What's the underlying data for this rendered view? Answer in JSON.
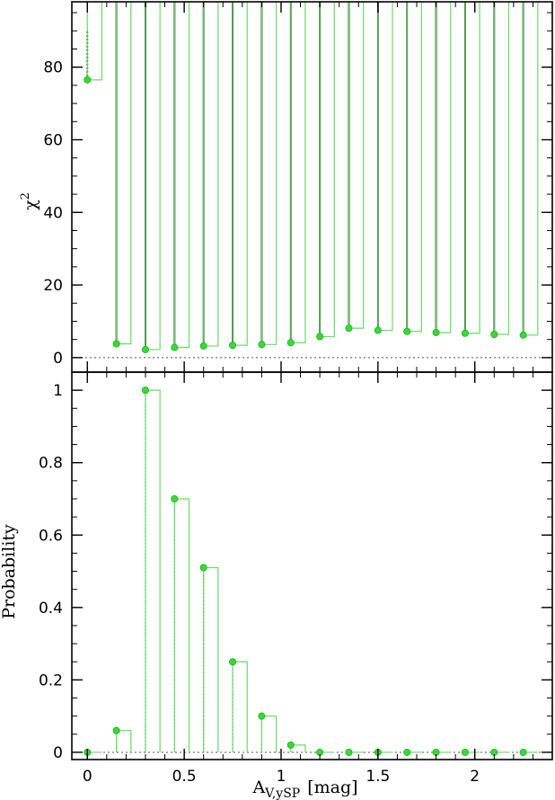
{
  "chart_data": [
    {
      "panel": "top",
      "type": "scatter",
      "ylabel": "χ",
      "ylabel_sup": "2",
      "xlim": [
        -0.08,
        2.4
      ],
      "ylim": [
        -4,
        98
      ],
      "yticks": [
        0,
        20,
        40,
        60,
        80
      ],
      "ytick_labels": [
        "0",
        "20",
        "40",
        "60",
        "80"
      ],
      "reference_line_y": 0,
      "colors": {
        "points": "#33dd33",
        "step": "#66dd66",
        "vlines": "#000000",
        "reference": "#555555"
      },
      "x": [
        0.0,
        0.15,
        0.3,
        0.45,
        0.6,
        0.75,
        0.9,
        1.05,
        1.2,
        1.35,
        1.5,
        1.65,
        1.8,
        1.95,
        2.1,
        2.25
      ],
      "values": [
        76.5,
        3.8,
        2.2,
        2.8,
        3.2,
        3.4,
        3.6,
        4.1,
        5.8,
        8.1,
        7.5,
        7.2,
        6.9,
        6.7,
        6.4,
        6.2
      ]
    },
    {
      "panel": "bottom",
      "type": "scatter",
      "ylabel": "Probability",
      "xlabel_main": "A",
      "xlabel_sub": "V,ySP",
      "xlabel_unit": "[mag]",
      "xlim": [
        -0.08,
        2.4
      ],
      "ylim": [
        -0.02,
        1.05
      ],
      "xticks": [
        0,
        0.5,
        1,
        1.5,
        2
      ],
      "xtick_labels": [
        "0",
        "0.5",
        "1",
        "1.5",
        "2"
      ],
      "yticks": [
        0,
        0.2,
        0.4,
        0.6,
        0.8,
        1
      ],
      "ytick_labels": [
        "0",
        "0.2",
        "0.4",
        "0.6",
        "0.8",
        "1"
      ],
      "reference_line_y": 0,
      "colors": {
        "points": "#33dd33",
        "step": "#66dd66",
        "vlines": "#000000",
        "reference": "#555555"
      },
      "x": [
        0.0,
        0.15,
        0.3,
        0.45,
        0.6,
        0.75,
        0.9,
        1.05,
        1.2,
        1.35,
        1.5,
        1.65,
        1.8,
        1.95,
        2.1,
        2.25
      ],
      "values": [
        0.0,
        0.06,
        1.0,
        0.7,
        0.51,
        0.25,
        0.1,
        0.02,
        0.0,
        0.0,
        0.0,
        0.0,
        0.0,
        0.0,
        0.0,
        0.0
      ]
    }
  ]
}
